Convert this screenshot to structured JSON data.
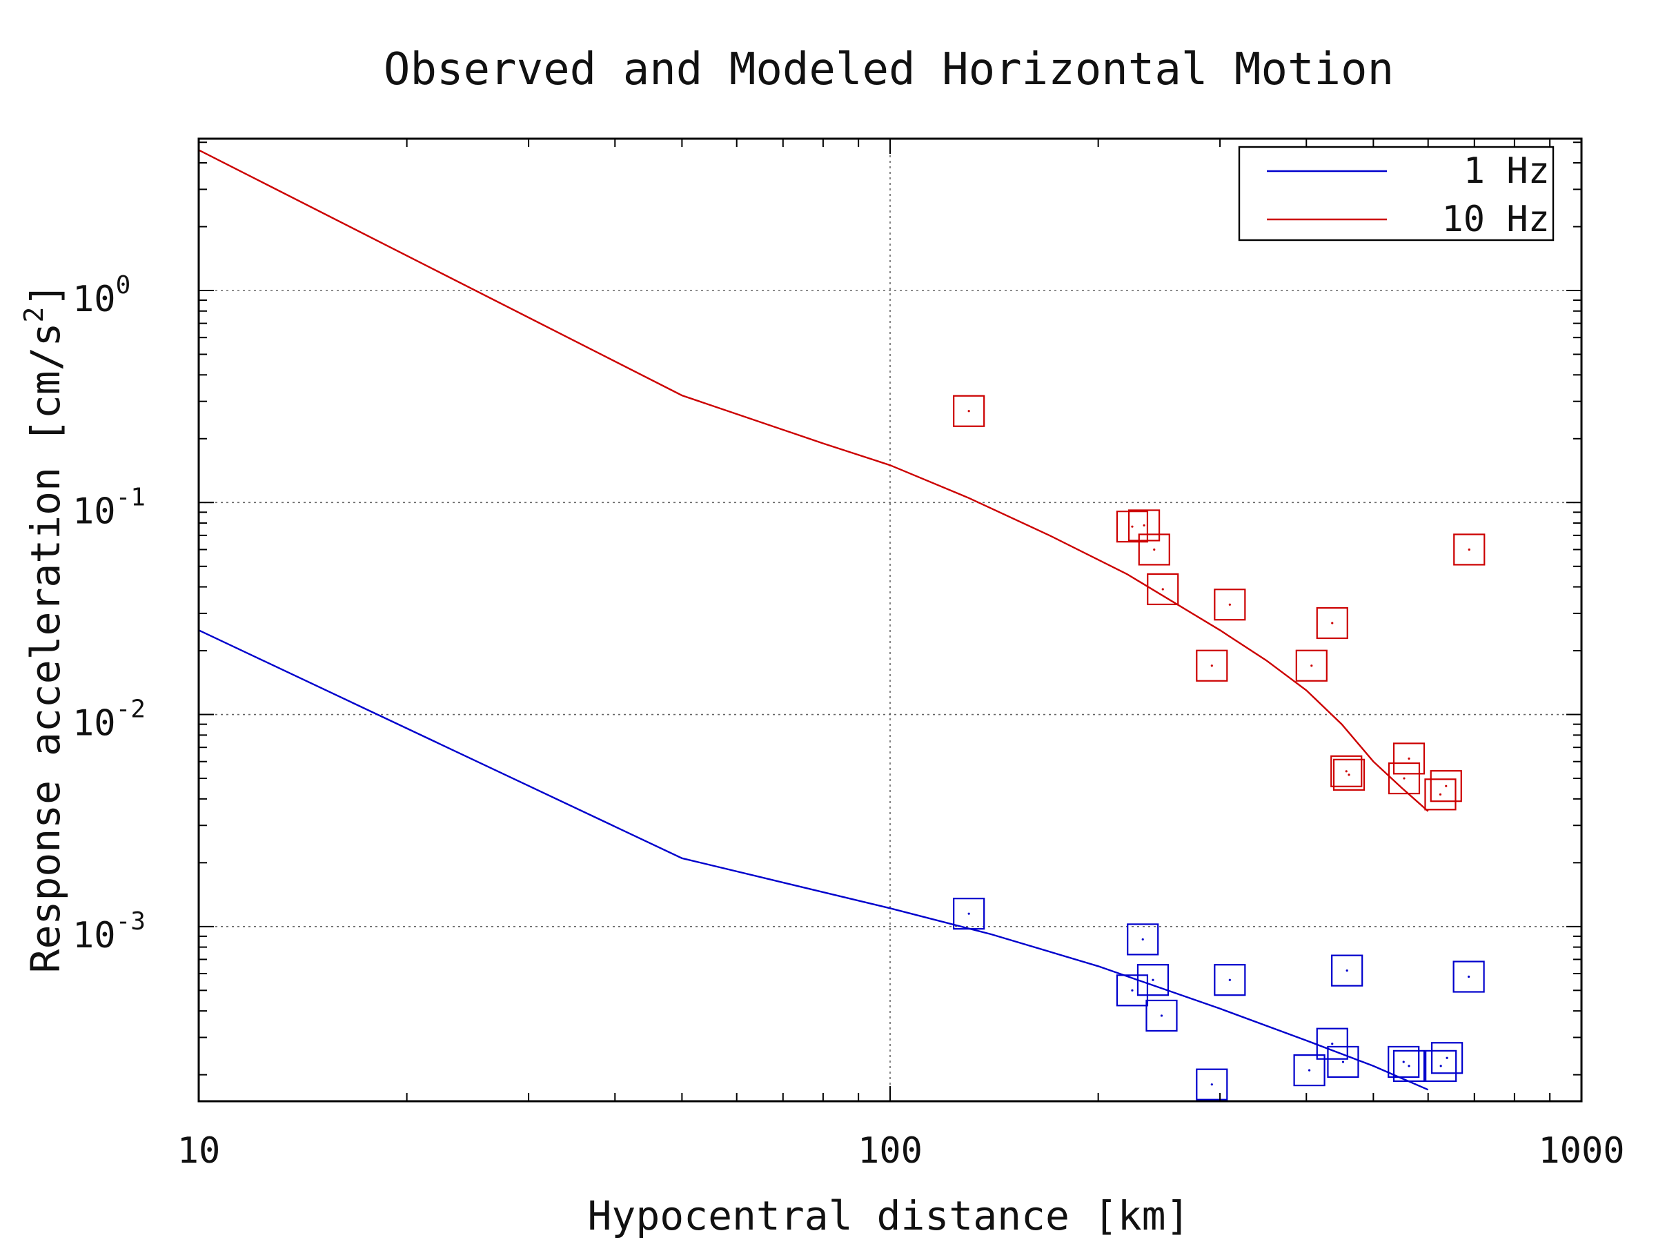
{
  "chart_data": {
    "type": "line",
    "title": "Observed and Modeled Horizontal Motion",
    "xlabel": "Hypocentral distance [km]",
    "ylabel": "Response acceleration [cm/s^2]",
    "ylabel_main": "Response acceleration [cm/s",
    "ylabel_sup": "2",
    "ylabel_close": "]",
    "x_scale": "log",
    "y_scale": "log",
    "xlim": [
      10,
      1000
    ],
    "ylim": [
      0.00015,
      5.2
    ],
    "x_ticks": [
      {
        "value": 10,
        "label": "10"
      },
      {
        "value": 100,
        "label": "100"
      },
      {
        "value": 1000,
        "label": "1000"
      }
    ],
    "y_ticks": [
      {
        "value": 1,
        "base": "10",
        "exp": "0"
      },
      {
        "value": 0.1,
        "base": "10",
        "exp": "-1"
      },
      {
        "value": 0.01,
        "base": "10",
        "exp": "-2"
      },
      {
        "value": 0.001,
        "base": "10",
        "exp": "-3"
      }
    ],
    "grid": true,
    "legend_position": "top-right",
    "series": [
      {
        "name": "1 Hz",
        "color": "#0000cc",
        "line": [
          [
            10,
            0.025
          ],
          [
            50,
            0.0021
          ],
          [
            100,
            0.00122
          ],
          [
            140,
            0.00092
          ],
          [
            200,
            0.00065
          ],
          [
            300,
            0.00041
          ],
          [
            400,
            0.00029
          ],
          [
            500,
            0.00022
          ],
          [
            600,
            0.00017
          ]
        ],
        "observed": [
          [
            130,
            0.00115
          ],
          [
            232,
            0.00087
          ],
          [
            224,
            0.0005
          ],
          [
            240,
            0.00056
          ],
          [
            247,
            0.00038
          ],
          [
            310,
            0.00056
          ],
          [
            292,
            0.00018
          ],
          [
            458,
            0.00062
          ],
          [
            436,
            0.00028
          ],
          [
            404,
            0.00021
          ],
          [
            452,
            0.00023
          ],
          [
            553,
            0.00023
          ],
          [
            563,
            0.00022
          ],
          [
            626,
            0.00022
          ],
          [
            639,
            0.00024
          ],
          [
            687,
            0.00058
          ]
        ]
      },
      {
        "name": "10 Hz",
        "color": "#cc0000",
        "line": [
          [
            10,
            4.6
          ],
          [
            50,
            0.32
          ],
          [
            80,
            0.19
          ],
          [
            100,
            0.15
          ],
          [
            130,
            0.105
          ],
          [
            170,
            0.07
          ],
          [
            220,
            0.046
          ],
          [
            300,
            0.025
          ],
          [
            350,
            0.018
          ],
          [
            400,
            0.013
          ],
          [
            450,
            0.009
          ],
          [
            500,
            0.006
          ],
          [
            550,
            0.0045
          ],
          [
            600,
            0.0035
          ]
        ],
        "observed": [
          [
            130,
            0.27
          ],
          [
            224,
            0.077
          ],
          [
            233,
            0.078
          ],
          [
            241,
            0.06
          ],
          [
            248,
            0.039
          ],
          [
            310,
            0.033
          ],
          [
            292,
            0.017
          ],
          [
            436,
            0.027
          ],
          [
            407,
            0.017
          ],
          [
            457,
            0.0054
          ],
          [
            461,
            0.0052
          ],
          [
            563,
            0.0062
          ],
          [
            554,
            0.005
          ],
          [
            625,
            0.0042
          ],
          [
            637,
            0.0046
          ],
          [
            688,
            0.06
          ]
        ]
      }
    ]
  }
}
